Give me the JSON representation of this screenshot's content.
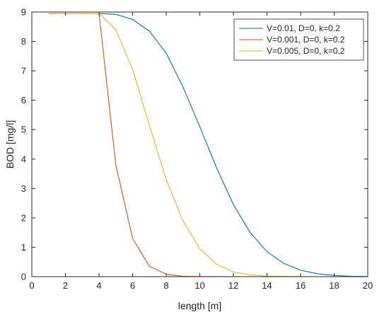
{
  "chart_data": {
    "type": "line",
    "title": "",
    "xlabel": "length [m]",
    "ylabel": "BOD [mg/l]",
    "xlim": [
      0,
      20
    ],
    "ylim": [
      0,
      9
    ],
    "xticks": [
      0,
      2,
      4,
      6,
      8,
      10,
      12,
      14,
      16,
      18,
      20
    ],
    "yticks": [
      0,
      1,
      2,
      3,
      4,
      5,
      6,
      7,
      8,
      9
    ],
    "grid": false,
    "legend_position": "top-right",
    "series": [
      {
        "name": "V=0.01, D=0, k=0.2",
        "color": "#0072BD",
        "x": [
          1,
          2,
          3,
          4,
          5,
          6,
          7,
          8,
          9,
          10,
          11,
          12,
          13,
          14,
          15,
          16,
          17,
          18,
          19,
          20
        ],
        "y": [
          8.95,
          8.95,
          8.95,
          8.95,
          8.92,
          8.75,
          8.35,
          7.6,
          6.45,
          5.1,
          3.7,
          2.45,
          1.5,
          0.85,
          0.45,
          0.22,
          0.1,
          0.04,
          0.015,
          0.005
        ]
      },
      {
        "name": "V=0.001, D=0, k=0.2",
        "color": "#D95319",
        "x": [
          1,
          2,
          3,
          4,
          5,
          6,
          7,
          8,
          9,
          10,
          11,
          12,
          13,
          14,
          15,
          16,
          17,
          18,
          19,
          20
        ],
        "y": [
          8.95,
          8.95,
          8.95,
          8.95,
          3.8,
          1.3,
          0.35,
          0.08,
          0.015,
          0.005,
          0.002,
          0,
          0,
          0,
          0,
          0,
          0,
          0,
          0,
          0
        ]
      },
      {
        "name": "V=0.005, D=0, k=0.2",
        "color": "#EDB120",
        "x": [
          1,
          2,
          3,
          4,
          5,
          6,
          7,
          8,
          9,
          10,
          11,
          12,
          13,
          14,
          15,
          16,
          17,
          18,
          19,
          20
        ],
        "y": [
          8.95,
          8.95,
          8.95,
          8.95,
          8.4,
          7.05,
          5.15,
          3.3,
          1.9,
          0.95,
          0.42,
          0.16,
          0.06,
          0.02,
          0.007,
          0.002,
          0,
          0,
          0,
          0
        ]
      }
    ]
  }
}
